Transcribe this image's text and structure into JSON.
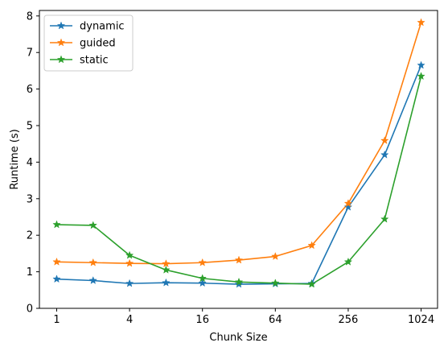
{
  "chart_data": {
    "type": "line",
    "xlabel": "Chunk Size",
    "ylabel": "Runtime (s)",
    "x_scale": "log2",
    "xlim": [
      0.72,
      1400
    ],
    "ylim": [
      0,
      8.15
    ],
    "x_ticks": [
      1,
      4,
      16,
      64,
      256,
      1024
    ],
    "x_tick_labels": [
      "1",
      "4",
      "16",
      "64",
      "256",
      "1024"
    ],
    "y_ticks": [
      0,
      1,
      2,
      3,
      4,
      5,
      6,
      7,
      8
    ],
    "y_tick_labels": [
      "0",
      "1",
      "2",
      "3",
      "4",
      "5",
      "6",
      "7",
      "8"
    ],
    "grid": false,
    "legend_position": "upper-left",
    "marker": "star",
    "x": [
      1,
      2,
      4,
      8,
      16,
      32,
      64,
      128,
      256,
      512,
      1024
    ],
    "series": [
      {
        "name": "dynamic",
        "color": "#1f77b4",
        "values": [
          0.8,
          0.76,
          0.68,
          0.7,
          0.69,
          0.66,
          0.67,
          0.68,
          2.77,
          4.2,
          6.65
        ]
      },
      {
        "name": "guided",
        "color": "#ff7f0e",
        "values": [
          1.27,
          1.25,
          1.23,
          1.22,
          1.25,
          1.32,
          1.42,
          1.72,
          2.87,
          4.59,
          7.82
        ]
      },
      {
        "name": "static",
        "color": "#2ca02c",
        "values": [
          2.29,
          2.27,
          1.45,
          1.05,
          0.82,
          0.72,
          0.69,
          0.66,
          1.27,
          2.44,
          6.35
        ]
      }
    ]
  }
}
